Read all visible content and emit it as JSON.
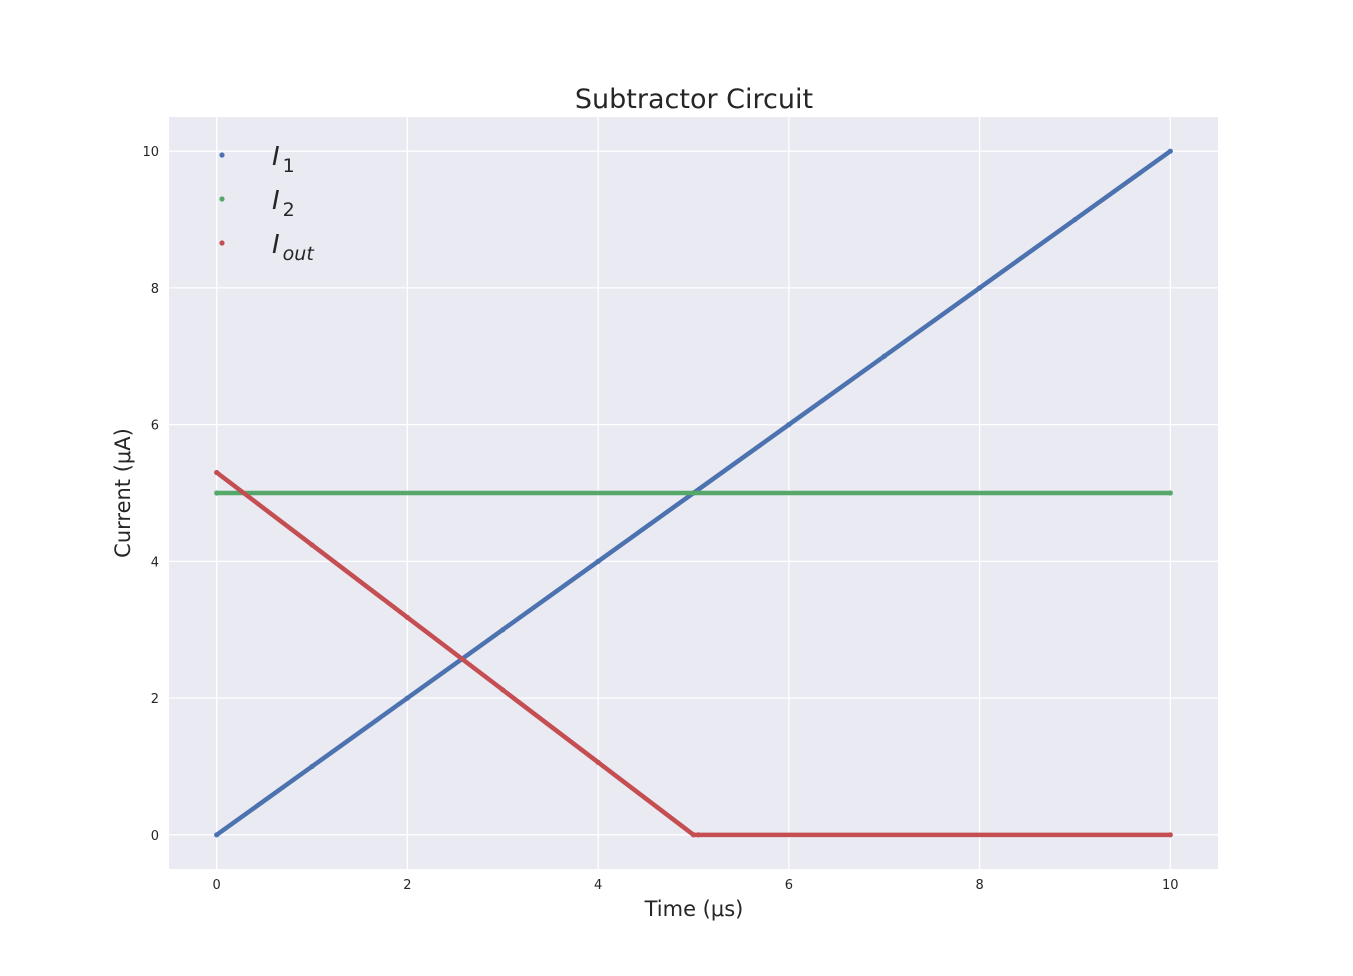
{
  "chart_data": {
    "type": "scatter",
    "title": "Subtractor Circuit",
    "xlabel": "Time (μs)",
    "ylabel": "Current (μA)",
    "xlim": [
      -0.5,
      10.5
    ],
    "ylim": [
      -0.5,
      10.5
    ],
    "xticks": [
      0,
      2,
      4,
      6,
      8,
      10
    ],
    "yticks": [
      0,
      2,
      4,
      6,
      8,
      10
    ],
    "xtick_labels": [
      "0",
      "2",
      "4",
      "6",
      "8",
      "10"
    ],
    "ytick_labels": [
      "0",
      "2",
      "4",
      "6",
      "8",
      "10"
    ],
    "grid": true,
    "legend_position": "top-left",
    "series": [
      {
        "name": "I1",
        "legend_base": "I",
        "legend_sub": "1",
        "color": "#4c72b0",
        "x": [
          0,
          1,
          2,
          3,
          4,
          5,
          6,
          7,
          8,
          9,
          10
        ],
        "y": [
          0,
          1,
          2,
          3,
          4,
          5,
          6,
          7,
          8,
          9,
          10
        ]
      },
      {
        "name": "I2",
        "legend_base": "I",
        "legend_sub": "2",
        "color": "#55a868",
        "x": [
          0,
          10
        ],
        "y": [
          5,
          5
        ]
      },
      {
        "name": "Iout",
        "legend_base": "I",
        "legend_sub": "out",
        "color": "#c44e52",
        "x": [
          0,
          1,
          2,
          3,
          4,
          5,
          5.05,
          10
        ],
        "y": [
          5.3,
          4.24,
          3.18,
          2.12,
          1.06,
          0,
          0,
          0
        ]
      }
    ]
  }
}
